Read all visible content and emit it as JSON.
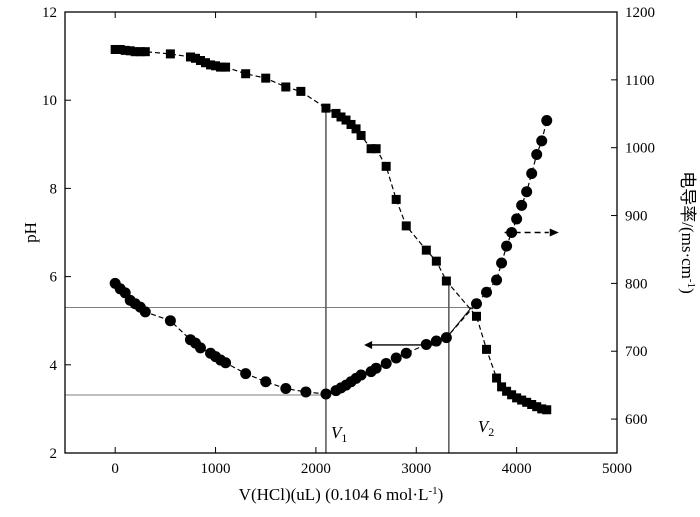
{
  "chart_data": {
    "type": "scatter",
    "x_axis": {
      "label": "V(HCl)(uL) (0.104 6 mol·L",
      "label_superscript": "-1",
      "label_suffix": ")",
      "range": [
        -500,
        5000
      ],
      "ticks": [
        0,
        1000,
        2000,
        3000,
        4000,
        5000
      ]
    },
    "y_left": {
      "label": "pH",
      "range": [
        2,
        12
      ],
      "ticks": [
        2,
        4,
        6,
        8,
        10,
        12
      ]
    },
    "y_right": {
      "label": "电导率/(ms·cm",
      "label_superscript": "-1",
      "label_suffix": ")",
      "range": [
        550,
        1200
      ],
      "ticks": [
        600,
        700,
        800,
        900,
        1000,
        1100,
        1200
      ]
    },
    "series": [
      {
        "marker": "square",
        "axis": "left",
        "x": [
          0,
          50,
          100,
          150,
          200,
          250,
          300,
          550,
          750,
          800,
          850,
          900,
          950,
          1000,
          1050,
          1100,
          1300,
          1500,
          1700,
          1850,
          2100,
          2200,
          2250,
          2300,
          2350,
          2400,
          2450,
          2550,
          2600,
          2700,
          2800,
          2900,
          3100,
          3200,
          3300,
          3600,
          3700,
          3800,
          3850,
          3900,
          3950,
          4000,
          4050,
          4100,
          4150,
          4200,
          4250,
          4300
        ],
        "y": [
          11.15,
          11.15,
          11.13,
          11.12,
          11.1,
          11.1,
          11.1,
          11.05,
          10.98,
          10.95,
          10.9,
          10.85,
          10.8,
          10.78,
          10.75,
          10.75,
          10.6,
          10.5,
          10.3,
          10.2,
          9.82,
          9.7,
          9.62,
          9.55,
          9.45,
          9.35,
          9.2,
          8.9,
          8.9,
          8.5,
          7.75,
          7.15,
          6.6,
          6.35,
          5.9,
          5.1,
          4.35,
          3.7,
          3.5,
          3.4,
          3.32,
          3.25,
          3.2,
          3.15,
          3.1,
          3.05,
          3.0,
          2.98
        ]
      },
      {
        "marker": "circle",
        "axis": "right",
        "x": [
          0,
          50,
          100,
          150,
          200,
          250,
          300,
          550,
          750,
          800,
          850,
          950,
          1000,
          1050,
          1100,
          1300,
          1500,
          1700,
          1900,
          2100,
          2200,
          2250,
          2300,
          2350,
          2400,
          2450,
          2550,
          2600,
          2700,
          2800,
          2900,
          3100,
          3200,
          3300,
          3600,
          3700,
          3800,
          3850,
          3900,
          3950,
          4000,
          4050,
          4100,
          4150,
          4200,
          4250,
          4300
        ],
        "y": [
          800,
          792,
          786,
          775,
          770,
          765,
          758,
          745,
          717,
          712,
          705,
          697,
          692,
          687,
          683,
          667,
          655,
          645,
          640,
          637,
          642,
          646,
          650,
          655,
          660,
          665,
          670,
          675,
          682,
          690,
          697,
          710,
          715,
          720,
          770,
          787,
          805,
          830,
          855,
          875,
          895,
          915,
          935,
          962,
          990,
          1010,
          1040
        ]
      }
    ],
    "annotations": [
      {
        "text": "V",
        "subscript": "1"
      },
      {
        "text": "V",
        "subscript": "2"
      }
    ]
  }
}
